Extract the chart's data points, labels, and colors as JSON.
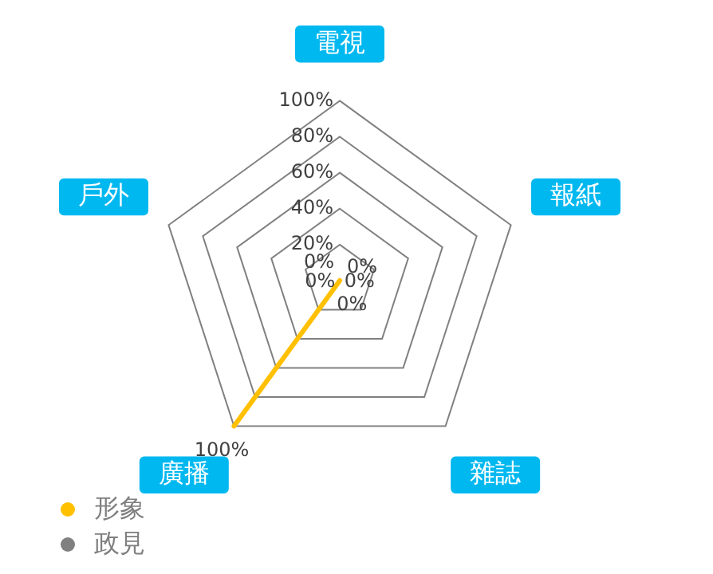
{
  "chart_data": {
    "type": "radar",
    "categories": [
      "電視",
      "報紙",
      "雜誌",
      "廣播",
      "戶外"
    ],
    "series": [
      {
        "name": "形象",
        "color": "#ffc000",
        "values": [
          0,
          0,
          0,
          100,
          0
        ],
        "value_labels": [
          "0%",
          "0%",
          "0%",
          "100%",
          "0%"
        ]
      },
      {
        "name": "政見",
        "color": "#808080",
        "values": [
          null,
          null,
          null,
          null,
          null
        ]
      }
    ],
    "annotations": [
      "0%"
    ],
    "ylim": [
      0,
      100
    ],
    "yticks": [
      {
        "value": 20,
        "label": "20%"
      },
      {
        "value": 40,
        "label": "40%"
      },
      {
        "value": 60,
        "label": "60%"
      },
      {
        "value": 80,
        "label": "80%"
      },
      {
        "value": 100,
        "label": "100%"
      }
    ],
    "grid": true,
    "legend": "bottom left",
    "marker": "none"
  }
}
